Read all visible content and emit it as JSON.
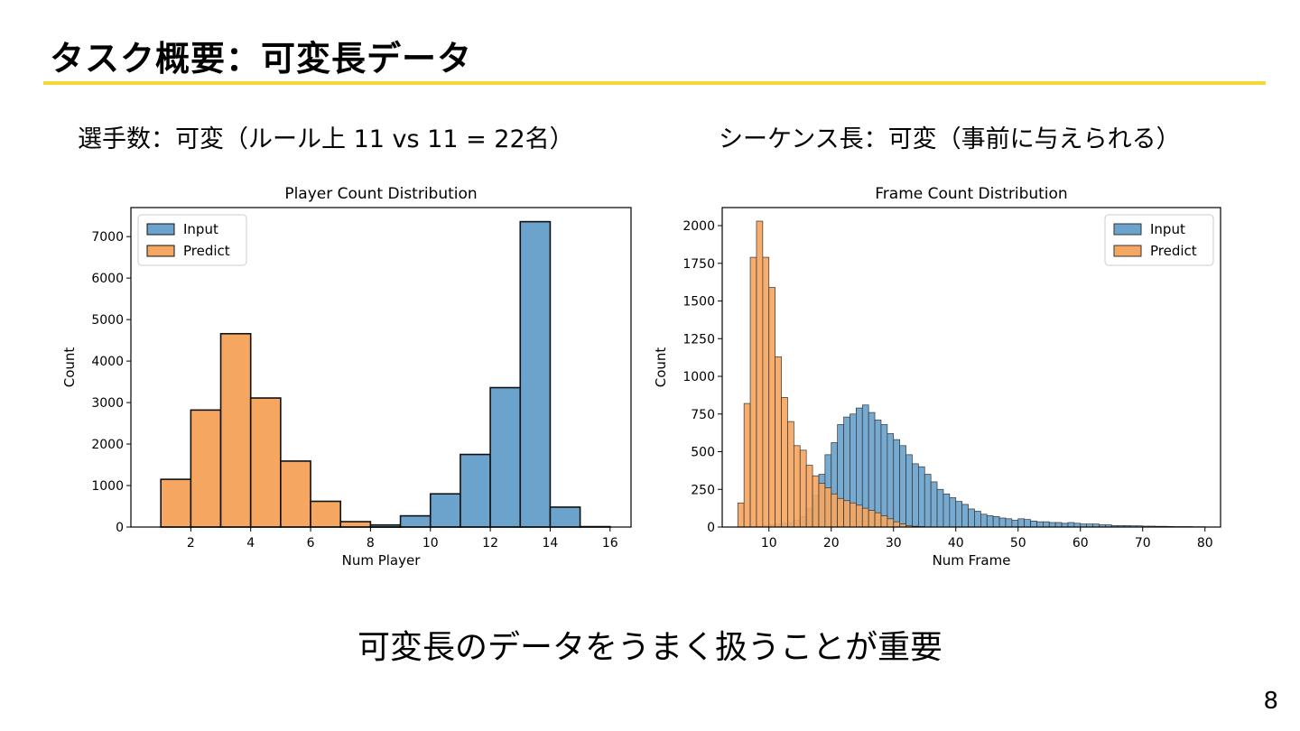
{
  "slide": {
    "title": "タスク概要：可変長データ",
    "left_caption": "選手数：可変（ルール上 11 vs 11 = 22名）",
    "right_caption": "シーケンス長：可変（事前に与えられる）",
    "conclusion": "可変長のデータをうまく扱うことが重要",
    "page_number": "8",
    "accent_color": "#f2d933"
  },
  "chart_data": [
    {
      "type": "bar",
      "title": "Player Count Distribution",
      "xlabel": "Num Player",
      "ylabel": "Count",
      "xlim": [
        0,
        16.7
      ],
      "ylim": [
        0,
        7700
      ],
      "xticks": [
        2,
        4,
        6,
        8,
        10,
        12,
        14,
        16
      ],
      "yticks": [
        0,
        1000,
        2000,
        3000,
        4000,
        5000,
        6000,
        7000
      ],
      "legend": {
        "position": "top-left",
        "entries": [
          "Input",
          "Predict"
        ]
      },
      "bin_width": 1,
      "series": [
        {
          "name": "Predict",
          "color": "#f5a661",
          "bins": [
            [
              1,
              1150
            ],
            [
              2,
              2820
            ],
            [
              3,
              4660
            ],
            [
              4,
              3110
            ],
            [
              5,
              1590
            ],
            [
              6,
              620
            ],
            [
              7,
              130
            ],
            [
              8,
              20
            ]
          ]
        },
        {
          "name": "Input",
          "color": "#6ba3cc",
          "bins": [
            [
              8,
              50
            ],
            [
              9,
              270
            ],
            [
              10,
              800
            ],
            [
              11,
              1750
            ],
            [
              12,
              3360
            ],
            [
              13,
              7360
            ],
            [
              14,
              480
            ],
            [
              15,
              10
            ]
          ]
        }
      ]
    },
    {
      "type": "bar",
      "title": "Frame Count Distribution",
      "xlabel": "Num Frame",
      "ylabel": "Count",
      "xlim": [
        2.5,
        82.5
      ],
      "ylim": [
        0,
        2120
      ],
      "xticks": [
        10,
        20,
        30,
        40,
        50,
        60,
        70,
        80
      ],
      "yticks": [
        0,
        250,
        500,
        750,
        1000,
        1250,
        1500,
        1750,
        2000
      ],
      "legend": {
        "position": "top-right",
        "entries": [
          "Input",
          "Predict"
        ]
      },
      "bin_width": 1,
      "series": [
        {
          "name": "Input",
          "color": "#6ba3cc",
          "bins": [
            [
              8,
              5
            ],
            [
              9,
              10
            ],
            [
              10,
              15
            ],
            [
              11,
              20
            ],
            [
              12,
              25
            ],
            [
              13,
              30
            ],
            [
              14,
              45
            ],
            [
              15,
              70
            ],
            [
              16,
              120
            ],
            [
              17,
              210
            ],
            [
              18,
              350
            ],
            [
              19,
              480
            ],
            [
              20,
              560
            ],
            [
              21,
              680
            ],
            [
              22,
              730
            ],
            [
              23,
              750
            ],
            [
              24,
              790
            ],
            [
              25,
              810
            ],
            [
              26,
              760
            ],
            [
              27,
              710
            ],
            [
              28,
              680
            ],
            [
              29,
              620
            ],
            [
              30,
              580
            ],
            [
              31,
              540
            ],
            [
              32,
              480
            ],
            [
              33,
              420
            ],
            [
              34,
              400
            ],
            [
              35,
              350
            ],
            [
              36,
              300
            ],
            [
              37,
              250
            ],
            [
              38,
              220
            ],
            [
              39,
              195
            ],
            [
              40,
              170
            ],
            [
              41,
              150
            ],
            [
              42,
              120
            ],
            [
              43,
              105
            ],
            [
              44,
              85
            ],
            [
              45,
              75
            ],
            [
              46,
              70
            ],
            [
              47,
              60
            ],
            [
              48,
              55
            ],
            [
              49,
              45
            ],
            [
              50,
              55
            ],
            [
              51,
              50
            ],
            [
              52,
              40
            ],
            [
              53,
              35
            ],
            [
              54,
              35
            ],
            [
              55,
              30
            ],
            [
              56,
              30
            ],
            [
              57,
              25
            ],
            [
              58,
              30
            ],
            [
              59,
              25
            ],
            [
              60,
              20
            ],
            [
              61,
              20
            ],
            [
              62,
              20
            ],
            [
              63,
              15
            ],
            [
              64,
              15
            ],
            [
              65,
              10
            ],
            [
              66,
              10
            ],
            [
              67,
              10
            ],
            [
              68,
              8
            ],
            [
              69,
              8
            ],
            [
              70,
              6
            ],
            [
              71,
              6
            ],
            [
              72,
              5
            ],
            [
              73,
              5
            ],
            [
              74,
              4
            ],
            [
              75,
              3
            ],
            [
              76,
              3
            ],
            [
              77,
              3
            ],
            [
              78,
              2
            ],
            [
              79,
              2
            ]
          ]
        },
        {
          "name": "Predict",
          "color": "#f5a661",
          "bins": [
            [
              5,
              160
            ],
            [
              6,
              820
            ],
            [
              7,
              1790
            ],
            [
              8,
              2030
            ],
            [
              9,
              1790
            ],
            [
              10,
              1590
            ],
            [
              11,
              1130
            ],
            [
              12,
              860
            ],
            [
              13,
              700
            ],
            [
              14,
              540
            ],
            [
              15,
              510
            ],
            [
              16,
              410
            ],
            [
              17,
              340
            ],
            [
              18,
              290
            ],
            [
              19,
              260
            ],
            [
              20,
              220
            ],
            [
              21,
              190
            ],
            [
              22,
              175
            ],
            [
              23,
              160
            ],
            [
              24,
              145
            ],
            [
              25,
              125
            ],
            [
              26,
              110
            ],
            [
              27,
              95
            ],
            [
              28,
              75
            ],
            [
              29,
              55
            ],
            [
              30,
              35
            ],
            [
              31,
              20
            ],
            [
              32,
              10
            ],
            [
              33,
              5
            ],
            [
              34,
              3
            ]
          ]
        }
      ]
    }
  ]
}
